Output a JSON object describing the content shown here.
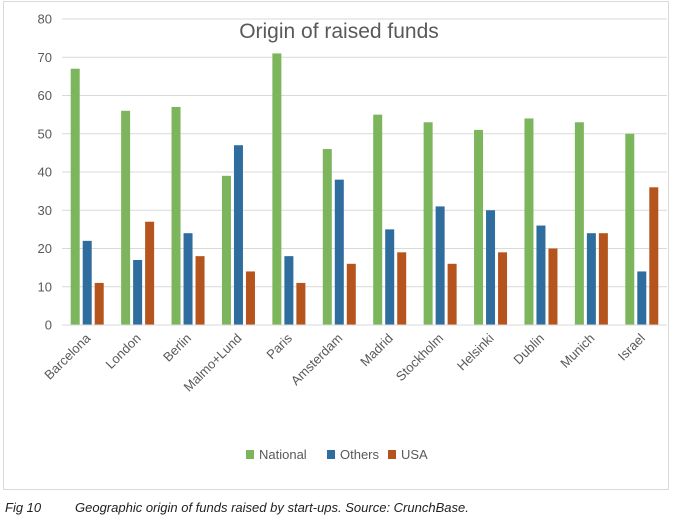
{
  "chart_data": {
    "type": "bar",
    "title": "Origin of raised funds",
    "xlabel": "",
    "ylabel": "",
    "ylim": [
      0,
      80
    ],
    "yticks": [
      0,
      10,
      20,
      30,
      40,
      50,
      60,
      70,
      80
    ],
    "grid": true,
    "legend_position": "bottom",
    "categories": [
      "Barcelona",
      "London",
      "Berlin",
      "Malmo+Lund",
      "Paris",
      "Amsterdam",
      "Madrid",
      "Stockholm",
      "Helsinki",
      "Dublin",
      "Munich",
      "Israel"
    ],
    "series": [
      {
        "name": "National",
        "color": "#7cb55b",
        "values": [
          67,
          56,
          57,
          39,
          71,
          46,
          55,
          53,
          51,
          54,
          53,
          50
        ]
      },
      {
        "name": "Others",
        "color": "#2e6d9e",
        "values": [
          22,
          17,
          24,
          47,
          18,
          38,
          25,
          31,
          30,
          26,
          24,
          14
        ]
      },
      {
        "name": "USA",
        "color": "#b5541c",
        "values": [
          11,
          27,
          18,
          14,
          11,
          16,
          19,
          16,
          19,
          20,
          24,
          36
        ]
      }
    ]
  },
  "caption": {
    "fig_number": "Fig 10",
    "text": "Geographic origin of funds raised by start-ups. Source: CrunchBase."
  }
}
